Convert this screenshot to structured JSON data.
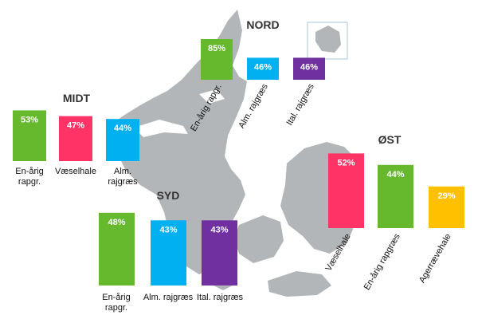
{
  "chart_data": [
    {
      "type": "bar",
      "title": "NORD",
      "categories": [
        "En-årig rapgr.",
        "Alm. rajgræs",
        "Ital. rajgræs"
      ],
      "values": [
        85,
        46,
        46
      ],
      "value_labels": [
        "85%",
        "46%",
        "46%"
      ],
      "colors": [
        "#66b82d",
        "#00b0f0",
        "#7030a0"
      ],
      "category_label_rotation": "diagonal"
    },
    {
      "type": "bar",
      "title": "MIDT",
      "categories": [
        "En-årig rapgr.",
        "Væselhale",
        "Alm. rajgræs"
      ],
      "values": [
        53,
        47,
        44
      ],
      "value_labels": [
        "53%",
        "47%",
        "44%"
      ],
      "colors": [
        "#66b82d",
        "#ff3366",
        "#00b0f0"
      ],
      "category_label_rotation": "horizontal"
    },
    {
      "type": "bar",
      "title": "SYD",
      "categories": [
        "En-årig rapgr.",
        "Alm. rajgræs",
        "Ital. rajgræs"
      ],
      "values": [
        48,
        43,
        43
      ],
      "value_labels": [
        "48%",
        "43%",
        "43%"
      ],
      "colors": [
        "#66b82d",
        "#00b0f0",
        "#7030a0"
      ],
      "category_label_rotation": "horizontal"
    },
    {
      "type": "bar",
      "title": "ØST",
      "categories": [
        "Væselhale",
        "En-årig rapgræs",
        "Agerrævehale"
      ],
      "values": [
        52,
        44,
        29
      ],
      "value_labels": [
        "52%",
        "44%",
        "29%"
      ],
      "colors": [
        "#ff3366",
        "#66b82d",
        "#ffc000"
      ],
      "category_label_rotation": "diagonal"
    }
  ],
  "map": {
    "land_color": "#b3b6b9",
    "water_color": "#ffffff",
    "inset_border_color": "#a9c4dc"
  }
}
